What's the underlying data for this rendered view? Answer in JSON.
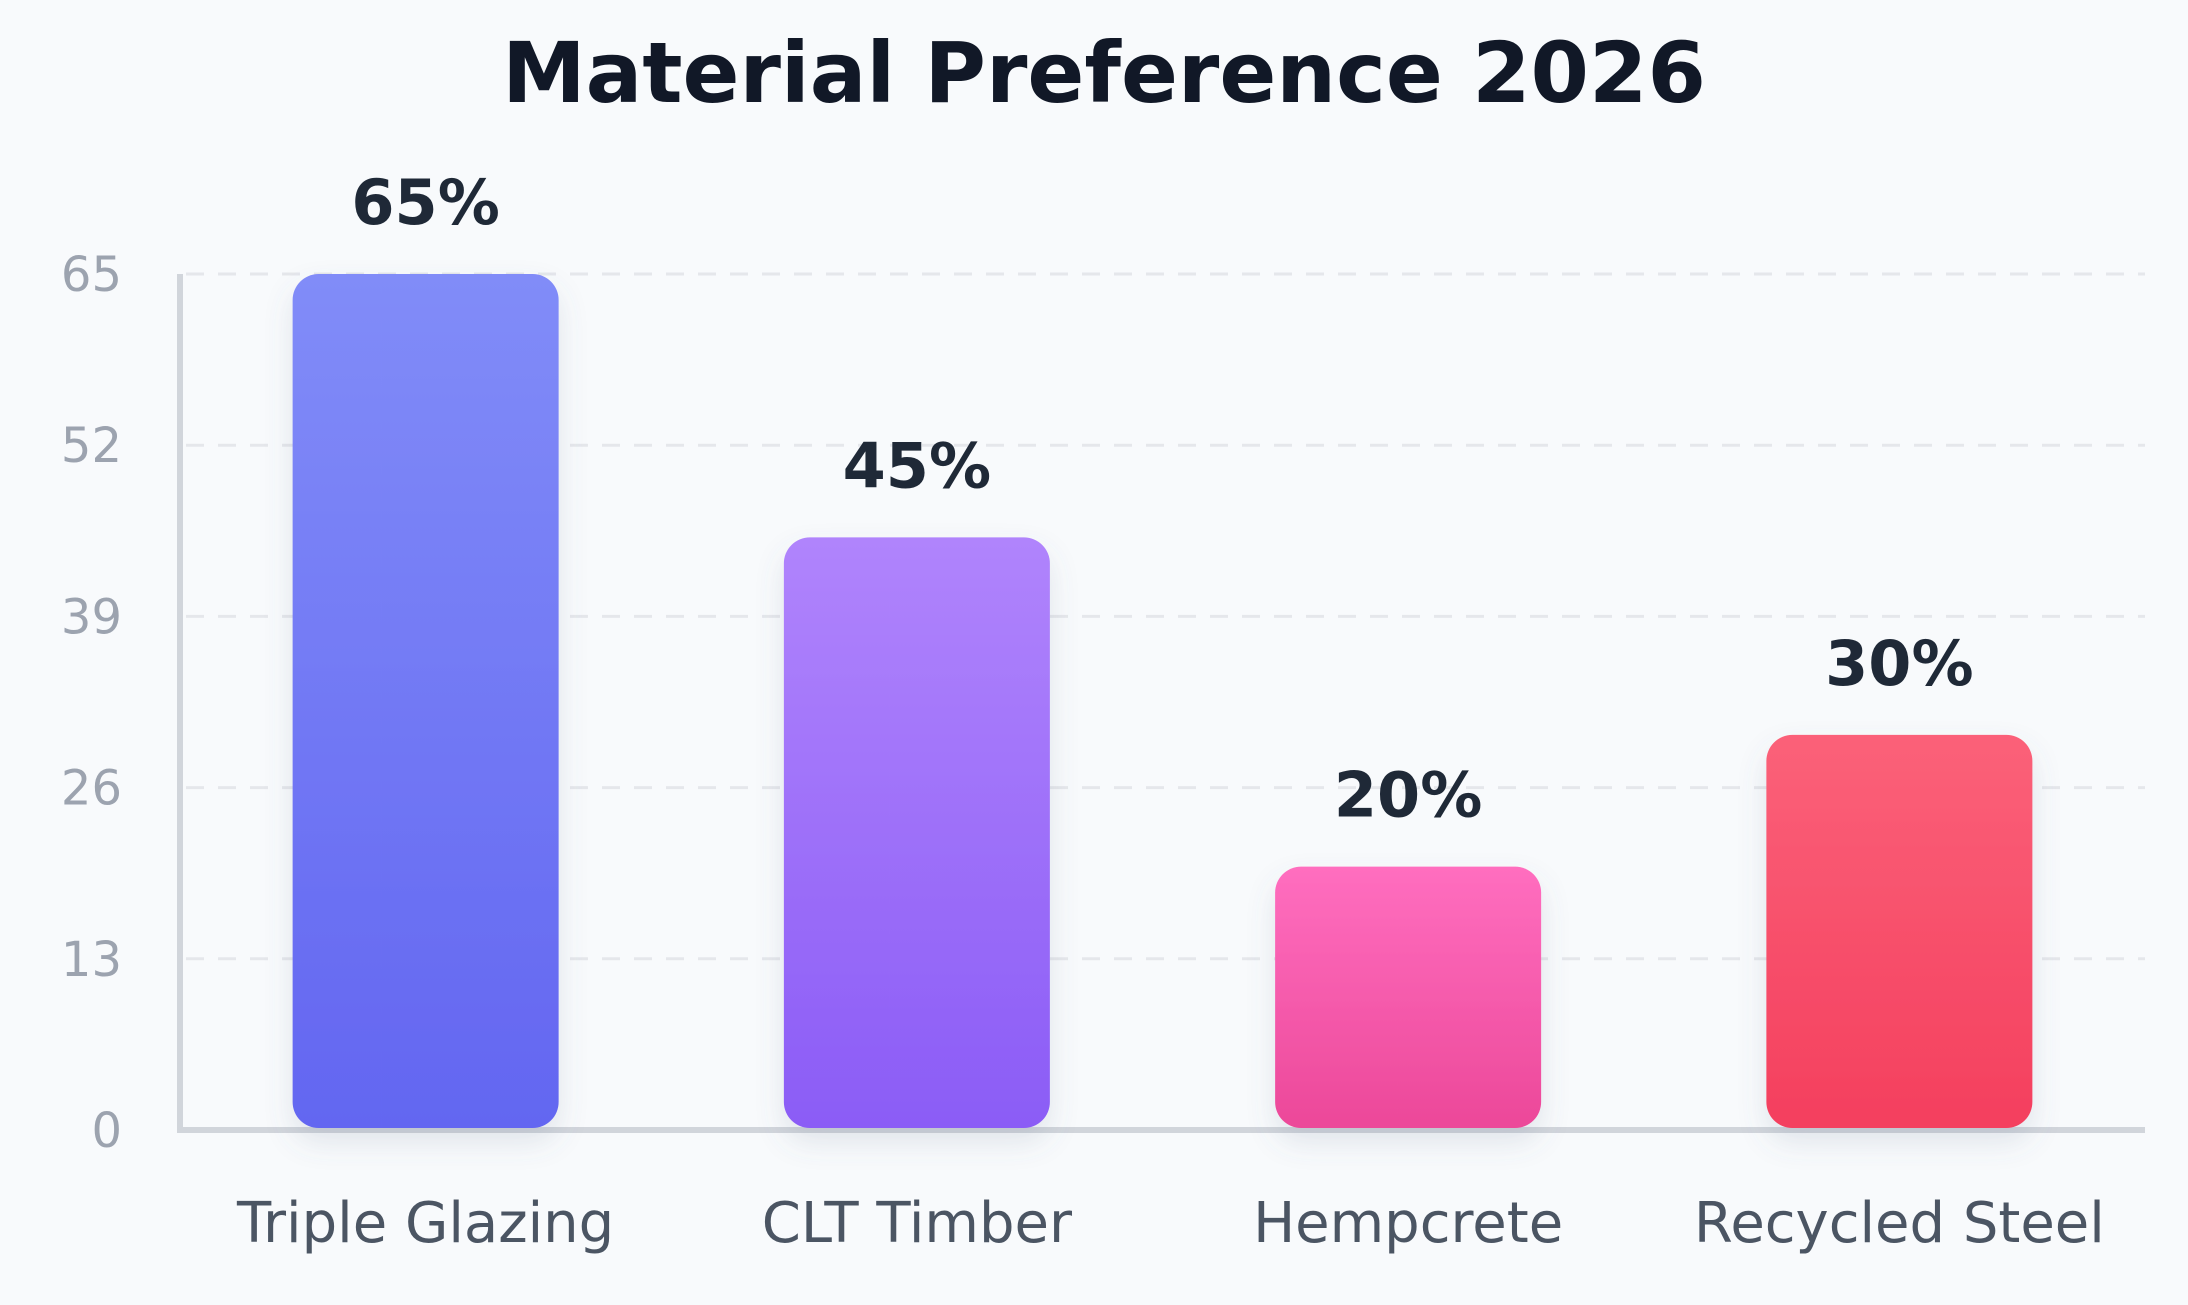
{
  "chart_data": {
    "type": "bar",
    "title": "Material Preference 2026",
    "xlabel": "",
    "ylabel": "",
    "categories": [
      "Triple Glazing",
      "CLT Timber",
      "Hempcrete",
      "Recycled Steel"
    ],
    "values": [
      65,
      45,
      20,
      30
    ],
    "data_labels": [
      "65%",
      "45%",
      "20%",
      "30%"
    ],
    "ylim": [
      0,
      65
    ],
    "yticks": [
      0,
      13,
      26,
      39,
      52,
      65
    ],
    "grid": true,
    "legend": "none",
    "colors": [
      {
        "top": "#818cf8",
        "bottom": "#6366f1"
      },
      {
        "top": "#b084fc",
        "bottom": "#8b5cf6"
      },
      {
        "top": "#ff6ebf",
        "bottom": "#ec4899"
      },
      {
        "top": "#fb6179",
        "bottom": "#f43f5e"
      }
    ]
  }
}
